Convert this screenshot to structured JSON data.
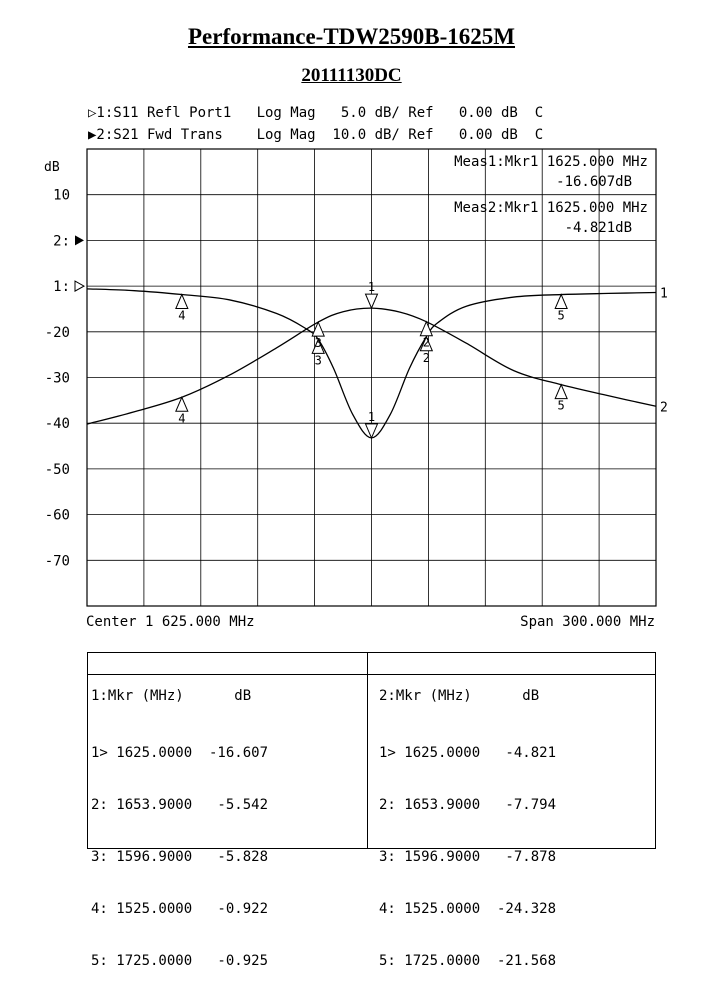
{
  "title": "Performance-TDW2590B-1625M",
  "subtitle": "20111130DC",
  "header": {
    "line1": "▷1:S11 Refl Port1   Log Mag   5.0 dB/ Ref   0.00 dB  C",
    "line2": "▶2:S21 Fwd Trans    Log Mag  10.0 dB/ Ref   0.00 dB  C"
  },
  "measurements": {
    "meas1_line1": "Meas1:Mkr1 1625.000 MHz",
    "meas1_line2": "-16.607dB",
    "meas2_line1": "Meas2:Mkr1 1625.000 MHz",
    "meas2_line2": "-4.821dB"
  },
  "footer": {
    "center": "Center 1 625.000 MHz",
    "span": "Span 300.000 MHz"
  },
  "marker_table": {
    "columns": [
      {
        "header": "1:Mkr (MHz)      dB",
        "rows": [
          "1> 1625.0000  -16.607",
          "2: 1653.9000   -5.542",
          "3: 1596.9000   -5.828",
          "4: 1525.0000   -0.922",
          "5: 1725.0000   -0.925"
        ]
      },
      {
        "header": "2:Mkr (MHz)      dB",
        "rows": [
          "1> 1625.0000   -4.821",
          "2: 1653.9000   -7.794",
          "3: 1596.9000   -7.878",
          "4: 1525.0000  -24.328",
          "5: 1725.0000  -21.568"
        ]
      }
    ]
  },
  "chart_data": {
    "type": "line",
    "ylabel": "dB",
    "xlim_mhz": [
      1475,
      1775
    ],
    "y_tick_labels": [
      "10",
      "2:",
      "1:",
      "-20",
      "-30",
      "-40",
      "-50",
      "-60",
      "-70"
    ],
    "grid": true,
    "series": [
      {
        "trace": "1",
        "label": "1",
        "end_label": "1",
        "scale_db_per_div": 5,
        "ref_db": 0,
        "x": [
          1475,
          1500,
          1525,
          1550,
          1575,
          1590,
          1596.9,
          1605,
          1615,
          1625,
          1635,
          1645,
          1653.9,
          1660,
          1675,
          1700,
          1725,
          1750,
          1775
        ],
        "y": [
          -0.3,
          -0.5,
          -0.922,
          -1.5,
          -3.0,
          -4.6,
          -5.828,
          -9.0,
          -14.0,
          -16.607,
          -14.0,
          -9.0,
          -5.542,
          -4.0,
          -2.2,
          -1.2,
          -0.925,
          -0.8,
          -0.7
        ]
      },
      {
        "trace": "2",
        "label": "2",
        "end_label": "2",
        "scale_db_per_div": 10,
        "ref_db": 0,
        "x": [
          1475,
          1500,
          1525,
          1550,
          1575,
          1596.9,
          1610,
          1625,
          1640,
          1653.9,
          1675,
          1700,
          1725,
          1750,
          1775
        ],
        "y": [
          -30.2,
          -27.5,
          -24.328,
          -19.5,
          -13.5,
          -7.878,
          -5.6,
          -4.821,
          -5.7,
          -7.794,
          -12.5,
          -18.5,
          -21.568,
          -24.0,
          -26.3
        ]
      }
    ],
    "markers": [
      {
        "trace": "1",
        "id": "1",
        "x": 1625,
        "y": -16.607
      },
      {
        "trace": "1",
        "id": "2",
        "x": 1653.9,
        "y": -5.542
      },
      {
        "trace": "1",
        "id": "3",
        "x": 1596.9,
        "y": -5.828
      },
      {
        "trace": "1",
        "id": "4",
        "x": 1525,
        "y": -0.922
      },
      {
        "trace": "1",
        "id": "5",
        "x": 1725,
        "y": -0.925
      },
      {
        "trace": "2",
        "id": "1",
        "x": 1625,
        "y": -4.821
      },
      {
        "trace": "2",
        "id": "2",
        "x": 1653.9,
        "y": -7.794
      },
      {
        "trace": "2",
        "id": "3",
        "x": 1596.9,
        "y": -7.878
      },
      {
        "trace": "2",
        "id": "4",
        "x": 1525,
        "y": -24.328
      },
      {
        "trace": "2",
        "id": "5",
        "x": 1725,
        "y": -21.568
      }
    ]
  }
}
